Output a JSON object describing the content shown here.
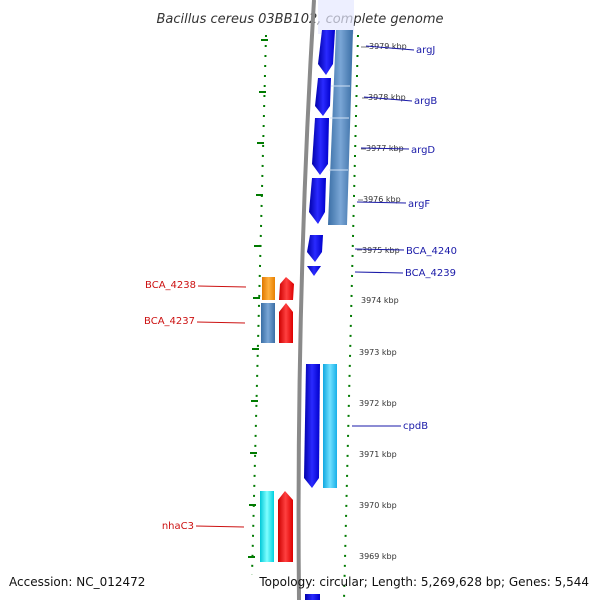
{
  "title": "Bacillus cereus 03BB102, complete genome",
  "footer": {
    "accession": "Accession: NC_012472",
    "summary": "Topology: circular; Length: 5,269,628 bp; Genes: 5,544"
  },
  "ticks": [
    "3979 kbp",
    "3978 kbp",
    "3977 kbp",
    "3976 kbp",
    "3975 kbp",
    "3974 kbp",
    "3973 kbp",
    "3972 kbp",
    "3971 kbp",
    "3970 kbp",
    "3969 kbp"
  ],
  "forward_genes": [
    "argJ",
    "argB",
    "argD",
    "argF",
    "BCA_4240",
    "BCA_4239",
    "cpdB"
  ],
  "reverse_genes": [
    "BCA_4238",
    "BCA_4237",
    "nhaC3"
  ],
  "colors": {
    "forward_gene": "#0000ee",
    "forward_cds": "#4a7fb8",
    "reverse_gene": "#ee0000",
    "reverse_orange": "#ff8c00",
    "reverse_steel": "#4a7fb8",
    "reverse_cyan": "#00e5ee",
    "forward_cyan": "#22c8f0",
    "backbone": "#888888",
    "tick_dots": "#006600",
    "forward_label": "#1a1aa8",
    "reverse_label": "#cc1111"
  }
}
